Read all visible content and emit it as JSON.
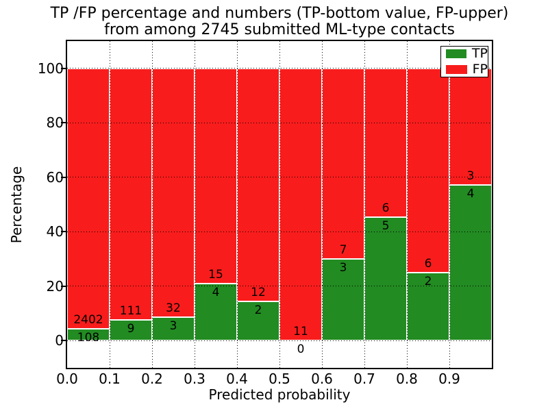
{
  "chart_data": {
    "type": "bar",
    "stacked": true,
    "normalized_to_percent": true,
    "title_line1": "TP /FP percentage and numbers (TP-bottom value, FP-upper)",
    "title_line2": "from among 2745 submitted ML-type contacts",
    "xlabel": "Predicted probability",
    "ylabel": "Percentage",
    "bin_width": 0.1,
    "bins": [
      {
        "range": "0.0-0.1",
        "tp": 108,
        "fp": 2402,
        "tp_pct": 4.3
      },
      {
        "range": "0.1-0.2",
        "tp": 9,
        "fp": 111,
        "tp_pct": 7.5
      },
      {
        "range": "0.2-0.3",
        "tp": 3,
        "fp": 32,
        "tp_pct": 8.6
      },
      {
        "range": "0.3-0.4",
        "tp": 4,
        "fp": 15,
        "tp_pct": 21.1
      },
      {
        "range": "0.4-0.5",
        "tp": 2,
        "fp": 12,
        "tp_pct": 14.3
      },
      {
        "range": "0.5-0.6",
        "tp": 0,
        "fp": 11,
        "tp_pct": 0.0
      },
      {
        "range": "0.6-0.7",
        "tp": 3,
        "fp": 7,
        "tp_pct": 30.0
      },
      {
        "range": "0.7-0.8",
        "tp": 5,
        "fp": 6,
        "tp_pct": 45.5
      },
      {
        "range": "0.8-0.9",
        "tp": 2,
        "fp": 6,
        "tp_pct": 25.0
      },
      {
        "range": "0.9-1.0",
        "tp": 4,
        "fp": 3,
        "tp_pct": 57.1
      }
    ],
    "series": [
      {
        "name": "TP",
        "color": "#228b22",
        "values": [
          108,
          9,
          3,
          4,
          2,
          0,
          3,
          5,
          2,
          4
        ]
      },
      {
        "name": "FP",
        "color": "#f91c1c",
        "values": [
          2402,
          111,
          32,
          15,
          12,
          11,
          7,
          6,
          6,
          3
        ]
      }
    ],
    "xticks": [
      "0.0",
      "0.1",
      "0.2",
      "0.3",
      "0.4",
      "0.5",
      "0.6",
      "0.7",
      "0.8",
      "0.9"
    ],
    "yticks": [
      "0",
      "20",
      "40",
      "60",
      "80",
      "100"
    ],
    "xlim": [
      0.0,
      1.0
    ],
    "ylim": [
      -10,
      110
    ],
    "grid": "dotted",
    "legend_position": "upper right",
    "bar_edge_color": "#ffffff",
    "axis_color": "#000000",
    "background": "#ffffff"
  }
}
